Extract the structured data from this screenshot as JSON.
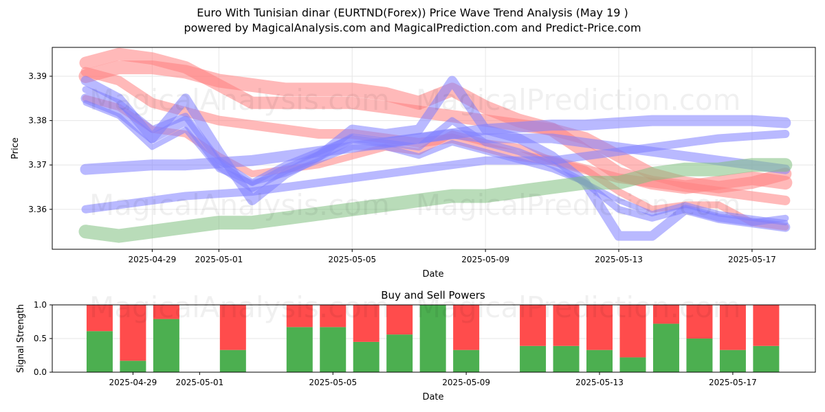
{
  "titles": {
    "title": "Euro With Tunisian dinar (EURTND(Forex)) Price Wave Trend Analysis (May 19 )",
    "subtitle": "powered by MagicalAnalysis.com and MagicalPrediction.com and Predict-Price.com"
  },
  "watermarks": [
    "MagicalAnalysis.com",
    "MagicalPrediction.com"
  ],
  "colors": {
    "red": "#ff7f7f",
    "blue": "#7f7fff",
    "green": "#7fbf7f",
    "buy": "#4caf50",
    "sell": "#ff4c4c"
  },
  "chart_data": [
    {
      "type": "line",
      "title": "",
      "xlabel": "Date",
      "ylabel": "Price",
      "x_ticks": [
        "2025-04-29",
        "2025-05-01",
        "2025-05-05",
        "2025-05-09",
        "2025-05-13",
        "2025-05-17"
      ],
      "y_ticks": [
        "3.36",
        "3.37",
        "3.38",
        "3.39"
      ],
      "xlim": [
        "2025-04-26",
        "2025-05-18.9"
      ],
      "ylim": [
        3.351,
        3.3965
      ],
      "grid": true,
      "x": [
        "2025-04-27",
        "2025-04-28",
        "2025-04-29",
        "2025-04-30",
        "2025-05-01",
        "2025-05-02",
        "2025-05-03",
        "2025-05-04",
        "2025-05-05",
        "2025-05-06",
        "2025-05-07",
        "2025-05-08",
        "2025-05-09",
        "2025-05-10",
        "2025-05-11",
        "2025-05-12",
        "2025-05-13",
        "2025-05-14",
        "2025-05-15",
        "2025-05-16",
        "2025-05-17",
        "2025-05-18"
      ],
      "series": [
        {
          "color": "red",
          "width": 18,
          "values": [
            3.393,
            3.395,
            3.394,
            3.392,
            3.388,
            3.384,
            3.384,
            3.384,
            3.384,
            3.383,
            3.382,
            3.381,
            3.38,
            3.379,
            3.378,
            3.376,
            3.372,
            3.368,
            3.366,
            3.365,
            3.366,
            3.368
          ]
        },
        {
          "color": "red",
          "width": 14,
          "values": [
            3.391,
            3.389,
            3.384,
            3.382,
            3.38,
            3.379,
            3.378,
            3.377,
            3.377,
            3.376,
            3.375,
            3.376,
            3.374,
            3.372,
            3.371,
            3.369,
            3.367,
            3.366,
            3.365,
            3.364,
            3.363,
            3.362
          ]
        },
        {
          "color": "red",
          "width": 20,
          "values": [
            3.39,
            3.392,
            3.392,
            3.391,
            3.389,
            3.388,
            3.387,
            3.387,
            3.387,
            3.386,
            3.384,
            3.387,
            3.383,
            3.38,
            3.378,
            3.373,
            3.368,
            3.366,
            3.365,
            3.366,
            3.367,
            3.366
          ]
        },
        {
          "color": "red",
          "width": 10,
          "values": [
            3.385,
            3.383,
            3.378,
            3.377,
            3.372,
            3.368,
            3.369,
            3.37,
            3.372,
            3.374,
            3.373,
            3.377,
            3.375,
            3.374,
            3.371,
            3.369,
            3.364,
            3.36,
            3.361,
            3.361,
            3.357,
            3.356
          ]
        },
        {
          "color": "blue",
          "width": 14,
          "values": [
            3.389,
            3.385,
            3.376,
            3.385,
            3.373,
            3.362,
            3.368,
            3.372,
            3.378,
            3.377,
            3.378,
            3.389,
            3.378,
            3.376,
            3.372,
            3.366,
            3.354,
            3.354,
            3.36,
            3.358,
            3.357,
            3.356
          ]
        },
        {
          "color": "blue",
          "width": 10,
          "values": [
            3.387,
            3.384,
            3.378,
            3.381,
            3.371,
            3.366,
            3.37,
            3.373,
            3.376,
            3.375,
            3.374,
            3.38,
            3.375,
            3.373,
            3.37,
            3.366,
            3.36,
            3.358,
            3.36,
            3.358,
            3.357,
            3.358
          ]
        },
        {
          "color": "blue",
          "width": 8,
          "values": [
            3.384,
            3.381,
            3.374,
            3.378,
            3.369,
            3.366,
            3.368,
            3.371,
            3.374,
            3.374,
            3.372,
            3.375,
            3.373,
            3.371,
            3.369,
            3.366,
            3.362,
            3.359,
            3.361,
            3.359,
            3.358,
            3.357
          ]
        },
        {
          "color": "blue",
          "width": 16,
          "values": [
            3.369,
            3.3695,
            3.37,
            3.37,
            3.3705,
            3.371,
            3.372,
            3.373,
            3.374,
            3.375,
            3.376,
            3.377,
            3.378,
            3.3785,
            3.379,
            3.379,
            3.3795,
            3.38,
            3.38,
            3.38,
            3.38,
            3.3795
          ]
        },
        {
          "color": "blue",
          "width": 12,
          "values": [
            3.36,
            3.361,
            3.362,
            3.363,
            3.3635,
            3.364,
            3.365,
            3.366,
            3.367,
            3.368,
            3.369,
            3.37,
            3.371,
            3.371,
            3.371,
            3.372,
            3.373,
            3.374,
            3.375,
            3.376,
            3.3765,
            3.377
          ]
        },
        {
          "color": "blue",
          "width": 14,
          "values": [
            3.385,
            3.382,
            3.376,
            3.38,
            3.37,
            3.365,
            3.369,
            3.372,
            3.376,
            3.375,
            3.376,
            3.377,
            3.376,
            3.376,
            3.376,
            3.375,
            3.374,
            3.373,
            3.372,
            3.371,
            3.37,
            3.369
          ]
        },
        {
          "color": "green",
          "width": 20,
          "values": [
            3.355,
            3.354,
            3.355,
            3.356,
            3.357,
            3.357,
            3.358,
            3.359,
            3.36,
            3.361,
            3.362,
            3.363,
            3.363,
            3.364,
            3.365,
            3.366,
            3.366,
            3.368,
            3.369,
            3.369,
            3.37,
            3.37
          ]
        }
      ]
    },
    {
      "type": "bar",
      "title": "Buy and Sell Powers",
      "xlabel": "Date",
      "ylabel": "Signal Strength",
      "x_ticks": [
        "2025-04-29",
        "2025-05-01",
        "2025-05-05",
        "2025-05-09",
        "2025-05-13",
        "2025-05-17"
      ],
      "y_ticks": [
        "0.0",
        "0.5",
        "1.0"
      ],
      "ylim": [
        0,
        1
      ],
      "grid": true,
      "categories": [
        "2025-04-28",
        "2025-04-29",
        "2025-04-30",
        "2025-05-02",
        "2025-05-04",
        "2025-05-05",
        "2025-05-06",
        "2025-05-07",
        "2025-05-08",
        "2025-05-09",
        "2025-05-11",
        "2025-05-12",
        "2025-05-13",
        "2025-05-14",
        "2025-05-15",
        "2025-05-16",
        "2025-05-17",
        "2025-05-18"
      ],
      "series": [
        {
          "color": "buy",
          "values": [
            0.61,
            0.17,
            0.79,
            0.33,
            0.67,
            0.67,
            0.45,
            0.56,
            1.0,
            0.33,
            0.39,
            0.39,
            0.33,
            0.22,
            0.72,
            0.5,
            0.33,
            0.39
          ]
        },
        {
          "color": "sell",
          "values": [
            0.39,
            0.83,
            0.21,
            0.67,
            0.33,
            0.33,
            0.55,
            0.44,
            0.0,
            0.67,
            0.61,
            0.61,
            0.67,
            0.78,
            0.28,
            0.5,
            0.67,
            0.61
          ]
        }
      ]
    }
  ]
}
